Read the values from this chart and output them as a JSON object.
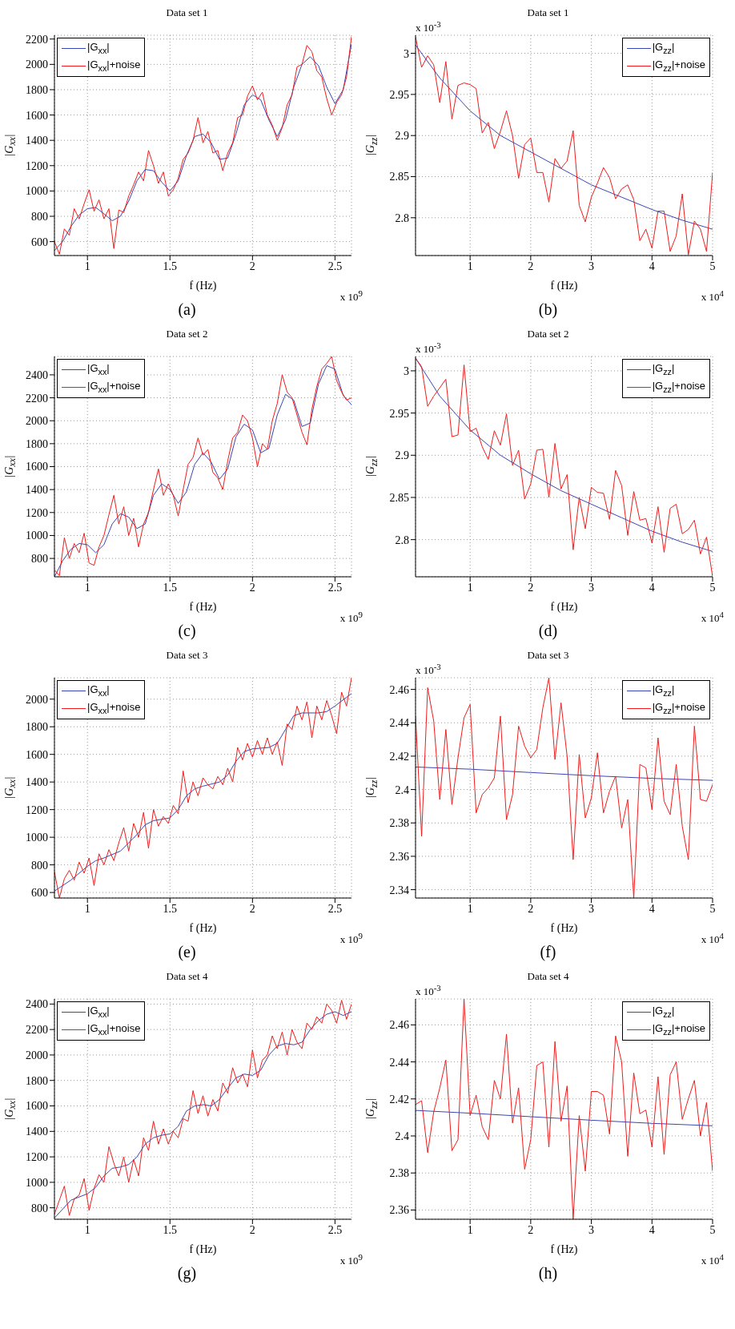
{
  "chart_data": [
    {
      "type": "line",
      "title": "Data set 1",
      "xlabel": "f (Hz)",
      "ylabel": "|G$_{xx}$|",
      "xlim": [
        0.8,
        2.6
      ],
      "xticks": [
        1,
        1.5,
        2,
        2.5
      ],
      "ylim": [
        490,
        2230
      ],
      "yticks": [
        600,
        800,
        1000,
        1200,
        1400,
        1600,
        1800,
        2000,
        2200
      ],
      "grid": true,
      "legend": "top left",
      "annotations": [
        "x 10$^{9}$",
        "(a)"
      ],
      "series": [
        {
          "name": "|G$_{xx}$|",
          "color": "#3a45b5",
          "x": [
            0.8,
            0.85,
            0.9,
            0.95,
            1.0,
            1.05,
            1.1,
            1.15,
            1.2,
            1.25,
            1.3,
            1.35,
            1.4,
            1.45,
            1.5,
            1.55,
            1.6,
            1.65,
            1.7,
            1.75,
            1.8,
            1.85,
            1.9,
            1.95,
            2.0,
            2.05,
            2.1,
            2.15,
            2.2,
            2.25,
            2.3,
            2.35,
            2.4,
            2.45,
            2.5,
            2.55,
            2.6
          ],
          "values": [
            530,
            600,
            720,
            810,
            860,
            870,
            820,
            765,
            800,
            920,
            1080,
            1170,
            1160,
            1070,
            1000,
            1080,
            1280,
            1430,
            1450,
            1380,
            1250,
            1260,
            1450,
            1680,
            1760,
            1720,
            1560,
            1430,
            1560,
            1820,
            2000,
            2060,
            1990,
            1820,
            1690,
            1800,
            2160
          ]
        },
        {
          "name": "|G$_{xx}$|+noise",
          "color": "#f01c1c",
          "x": [
            0.8,
            0.83,
            0.86,
            0.89,
            0.92,
            0.95,
            0.98,
            1.01,
            1.04,
            1.07,
            1.1,
            1.13,
            1.16,
            1.19,
            1.22,
            1.25,
            1.28,
            1.31,
            1.34,
            1.37,
            1.4,
            1.43,
            1.46,
            1.49,
            1.52,
            1.55,
            1.58,
            1.61,
            1.64,
            1.67,
            1.7,
            1.73,
            1.76,
            1.79,
            1.82,
            1.85,
            1.88,
            1.91,
            1.94,
            1.97,
            2.0,
            2.03,
            2.06,
            2.09,
            2.12,
            2.15,
            2.18,
            2.21,
            2.24,
            2.27,
            2.3,
            2.33,
            2.36,
            2.39,
            2.42,
            2.45,
            2.48,
            2.51,
            2.54,
            2.57,
            2.6
          ],
          "values": [
            600,
            500,
            700,
            650,
            860,
            780,
            900,
            1010,
            840,
            930,
            780,
            860,
            545,
            850,
            830,
            960,
            1050,
            1150,
            1080,
            1320,
            1200,
            1060,
            1150,
            960,
            1010,
            1100,
            1250,
            1300,
            1400,
            1580,
            1380,
            1470,
            1300,
            1320,
            1160,
            1300,
            1380,
            1580,
            1600,
            1750,
            1830,
            1720,
            1780,
            1600,
            1520,
            1400,
            1500,
            1680,
            1760,
            1980,
            2000,
            2150,
            2100,
            1950,
            1900,
            1730,
            1600,
            1700,
            1760,
            1900,
            2220
          ]
        }
      ]
    },
    {
      "type": "line",
      "title": "Data set 1",
      "xlabel": "f (Hz)",
      "ylabel": "|G$_{zz}$|",
      "xlim": [
        0.1,
        5
      ],
      "xticks": [
        1,
        2,
        3,
        4,
        5
      ],
      "ylim": [
        2.754,
        3.022
      ],
      "yticks": [
        2.8,
        2.85,
        2.9,
        2.95,
        3
      ],
      "grid": true,
      "legend": "top right",
      "annotations": [
        "x 10$^{-3}$",
        "x 10$^{4}$",
        "(b)"
      ],
      "series": [
        {
          "name": "|G$_{zz}$|",
          "color": "#3a45b5",
          "x": [
            0.1,
            0.5,
            1,
            1.5,
            2,
            2.5,
            3,
            3.5,
            4,
            4.5,
            5
          ],
          "values": [
            3.01,
            2.97,
            2.93,
            2.9,
            2.88,
            2.86,
            2.84,
            2.825,
            2.81,
            2.797,
            2.786
          ]
        },
        {
          "name": "|G$_{zz}$|+noise",
          "color": "#f01c1c",
          "x": [
            0.1,
            0.2,
            0.3,
            0.4,
            0.5,
            0.6,
            0.7,
            0.8,
            0.9,
            1.0,
            1.1,
            1.2,
            1.3,
            1.4,
            1.5,
            1.6,
            1.7,
            1.8,
            1.9,
            2.0,
            2.1,
            2.2,
            2.3,
            2.4,
            2.5,
            2.6,
            2.7,
            2.8,
            2.9,
            3.0,
            3.1,
            3.2,
            3.3,
            3.4,
            3.5,
            3.6,
            3.7,
            3.8,
            3.9,
            4.0,
            4.1,
            4.2,
            4.3,
            4.4,
            4.5,
            4.6,
            4.7,
            4.8,
            4.9,
            5.0
          ],
          "values": [
            3.02,
            2.983,
            2.997,
            2.986,
            2.94,
            2.99,
            2.92,
            2.961,
            2.964,
            2.962,
            2.957,
            2.903,
            2.916,
            2.884,
            2.905,
            2.93,
            2.9,
            2.848,
            2.889,
            2.897,
            2.855,
            2.855,
            2.819,
            2.872,
            2.86,
            2.869,
            2.906,
            2.815,
            2.795,
            2.825,
            2.842,
            2.861,
            2.849,
            2.823,
            2.835,
            2.84,
            2.822,
            2.772,
            2.786,
            2.763,
            2.808,
            2.808,
            2.759,
            2.778,
            2.829,
            2.755,
            2.796,
            2.786,
            2.759,
            2.855
          ]
        }
      ]
    },
    {
      "type": "line",
      "title": "Data set 2",
      "xlabel": "f (Hz)",
      "ylabel": "|G$_{xx}$|",
      "xlim": [
        0.8,
        2.6
      ],
      "xticks": [
        1,
        1.5,
        2,
        2.5
      ],
      "ylim": [
        640,
        2560
      ],
      "yticks": [
        800,
        1000,
        1200,
        1400,
        1600,
        1800,
        2000,
        2200,
        2400
      ],
      "grid": true,
      "legend": "top left",
      "annotations": [
        "x 10$^{9}$",
        "(c)"
      ],
      "series": [
        {
          "name": "|G$_{xx}$|",
          "color": "#3a45b5",
          "x": [
            0.8,
            0.85,
            0.9,
            0.95,
            1.0,
            1.05,
            1.1,
            1.15,
            1.2,
            1.25,
            1.3,
            1.35,
            1.4,
            1.45,
            1.5,
            1.55,
            1.6,
            1.65,
            1.7,
            1.75,
            1.8,
            1.85,
            1.9,
            1.95,
            2.0,
            2.05,
            2.1,
            2.15,
            2.2,
            2.25,
            2.3,
            2.35,
            2.4,
            2.45,
            2.5,
            2.55,
            2.6
          ],
          "values": [
            640,
            780,
            880,
            930,
            920,
            850,
            920,
            1100,
            1190,
            1160,
            1060,
            1100,
            1350,
            1450,
            1400,
            1280,
            1380,
            1620,
            1720,
            1640,
            1490,
            1580,
            1860,
            1970,
            1920,
            1720,
            1760,
            2050,
            2230,
            2180,
            1950,
            1980,
            2320,
            2480,
            2450,
            2220,
            2140
          ]
        },
        {
          "name": "|G$_{xx}$|+noise",
          "color": "#f01c1c",
          "x": [
            0.8,
            0.83,
            0.86,
            0.89,
            0.92,
            0.95,
            0.98,
            1.01,
            1.04,
            1.07,
            1.1,
            1.13,
            1.16,
            1.19,
            1.22,
            1.25,
            1.28,
            1.31,
            1.34,
            1.37,
            1.4,
            1.43,
            1.46,
            1.49,
            1.52,
            1.55,
            1.58,
            1.61,
            1.64,
            1.67,
            1.7,
            1.73,
            1.76,
            1.79,
            1.82,
            1.85,
            1.88,
            1.91,
            1.94,
            1.97,
            2.0,
            2.03,
            2.06,
            2.09,
            2.12,
            2.15,
            2.18,
            2.21,
            2.24,
            2.27,
            2.3,
            2.33,
            2.36,
            2.39,
            2.42,
            2.45,
            2.48,
            2.51,
            2.54,
            2.57,
            2.6
          ],
          "values": [
            700,
            650,
            980,
            800,
            930,
            850,
            1020,
            760,
            740,
            900,
            1000,
            1180,
            1350,
            1100,
            1250,
            1000,
            1150,
            900,
            1100,
            1200,
            1400,
            1580,
            1350,
            1450,
            1350,
            1170,
            1400,
            1620,
            1680,
            1850,
            1700,
            1750,
            1550,
            1500,
            1400,
            1650,
            1850,
            1900,
            2050,
            2000,
            1850,
            1600,
            1800,
            1750,
            2000,
            2150,
            2400,
            2250,
            2200,
            2050,
            1900,
            1790,
            2100,
            2300,
            2450,
            2500,
            2560,
            2350,
            2250,
            2180,
            2200
          ]
        }
      ]
    },
    {
      "type": "line",
      "title": "Data set 2",
      "xlabel": "f (Hz)",
      "ylabel": "|G$_{zz}$|",
      "xlim": [
        0.1,
        5
      ],
      "xticks": [
        1,
        2,
        3,
        4,
        5
      ],
      "ylim": [
        2.756,
        3.017
      ],
      "yticks": [
        2.8,
        2.85,
        2.9,
        2.95,
        3
      ],
      "grid": true,
      "legend": "top right",
      "annotations": [
        "x 10$^{-3}$",
        "x 10$^{4}$",
        "(d)"
      ],
      "series": [
        {
          "name": "|G$_{zz}$|",
          "color": "#3a45b5",
          "x": [
            0.1,
            0.5,
            1,
            1.5,
            2,
            2.5,
            3,
            3.5,
            4,
            4.5,
            5
          ],
          "values": [
            3.015,
            2.97,
            2.93,
            2.9,
            2.878,
            2.858,
            2.842,
            2.826,
            2.81,
            2.797,
            2.786
          ]
        },
        {
          "name": "|G$_{zz}$|+noise",
          "color": "#f01c1c",
          "x": [
            0.1,
            0.2,
            0.3,
            0.4,
            0.5,
            0.6,
            0.7,
            0.8,
            0.9,
            1.0,
            1.1,
            1.2,
            1.3,
            1.4,
            1.5,
            1.6,
            1.7,
            1.8,
            1.9,
            2.0,
            2.1,
            2.2,
            2.3,
            2.4,
            2.5,
            2.6,
            2.7,
            2.8,
            2.9,
            3.0,
            3.1,
            3.2,
            3.3,
            3.4,
            3.5,
            3.6,
            3.7,
            3.8,
            3.9,
            4.0,
            4.1,
            4.2,
            4.3,
            4.4,
            4.5,
            4.6,
            4.7,
            4.8,
            4.9,
            5.0
          ],
          "values": [
            3.015,
            3.005,
            2.958,
            2.97,
            2.98,
            2.99,
            2.922,
            2.924,
            3.007,
            2.928,
            2.932,
            2.91,
            2.895,
            2.929,
            2.912,
            2.949,
            2.888,
            2.906,
            2.848,
            2.866,
            2.906,
            2.907,
            2.85,
            2.914,
            2.86,
            2.877,
            2.788,
            2.85,
            2.813,
            2.862,
            2.856,
            2.855,
            2.824,
            2.882,
            2.864,
            2.805,
            2.857,
            2.823,
            2.825,
            2.796,
            2.839,
            2.785,
            2.837,
            2.842,
            2.807,
            2.812,
            2.823,
            2.783,
            2.803,
            2.756
          ]
        }
      ]
    },
    {
      "type": "line",
      "title": "Data set 3",
      "xlabel": "f (Hz)",
      "ylabel": "|G$_{xx}$|",
      "xlim": [
        0.8,
        2.6
      ],
      "xticks": [
        1,
        1.5,
        2,
        2.5
      ],
      "ylim": [
        560,
        2155
      ],
      "yticks": [
        600,
        800,
        1000,
        1200,
        1400,
        1600,
        1800,
        2000
      ],
      "grid": true,
      "legend": "top left",
      "annotations": [
        "x 10$^{9}$",
        "(e)"
      ],
      "series": [
        {
          "name": "|G$_{xx}$|",
          "color": "#3a45b5",
          "x": [
            0.8,
            0.9,
            1.0,
            1.05,
            1.1,
            1.2,
            1.3,
            1.35,
            1.4,
            1.5,
            1.55,
            1.6,
            1.65,
            1.7,
            1.8,
            1.85,
            1.9,
            1.95,
            2.0,
            2.1,
            2.15,
            2.2,
            2.25,
            2.3,
            2.4,
            2.45,
            2.5,
            2.6
          ],
          "values": [
            610,
            690,
            790,
            830,
            850,
            900,
            1020,
            1090,
            1120,
            1140,
            1200,
            1300,
            1350,
            1370,
            1400,
            1450,
            1550,
            1620,
            1640,
            1650,
            1680,
            1780,
            1880,
            1900,
            1900,
            1910,
            1950,
            2040
          ]
        },
        {
          "name": "|G$_{xx}$|+noise",
          "color": "#f01c1c",
          "x": [
            0.8,
            0.83,
            0.86,
            0.89,
            0.92,
            0.95,
            0.98,
            1.01,
            1.04,
            1.07,
            1.1,
            1.13,
            1.16,
            1.19,
            1.22,
            1.25,
            1.28,
            1.31,
            1.34,
            1.37,
            1.4,
            1.43,
            1.46,
            1.49,
            1.52,
            1.55,
            1.58,
            1.61,
            1.64,
            1.67,
            1.7,
            1.73,
            1.76,
            1.79,
            1.82,
            1.85,
            1.88,
            1.91,
            1.94,
            1.97,
            2.0,
            2.03,
            2.06,
            2.09,
            2.12,
            2.15,
            2.18,
            2.21,
            2.24,
            2.27,
            2.3,
            2.33,
            2.36,
            2.39,
            2.42,
            2.45,
            2.48,
            2.51,
            2.54,
            2.57,
            2.6
          ],
          "values": [
            750,
            560,
            700,
            760,
            690,
            820,
            740,
            850,
            650,
            880,
            800,
            910,
            830,
            960,
            1070,
            900,
            1100,
            1000,
            1180,
            920,
            1200,
            1080,
            1150,
            1100,
            1230,
            1170,
            1480,
            1250,
            1400,
            1300,
            1430,
            1380,
            1350,
            1440,
            1380,
            1500,
            1400,
            1650,
            1560,
            1680,
            1580,
            1700,
            1600,
            1720,
            1600,
            1690,
            1520,
            1820,
            1780,
            1950,
            1850,
            1980,
            1720,
            1950,
            1850,
            1990,
            1880,
            1750,
            2050,
            1950,
            2155
          ]
        }
      ]
    },
    {
      "type": "line",
      "title": "Data set 3",
      "xlabel": "f (Hz)",
      "ylabel": "|G$_{zz}$|",
      "xlim": [
        0.1,
        5
      ],
      "xticks": [
        1,
        2,
        3,
        4,
        5
      ],
      "ylim": [
        2.335,
        2.467
      ],
      "yticks": [
        2.34,
        2.36,
        2.38,
        2.4,
        2.42,
        2.44,
        2.46
      ],
      "grid": true,
      "legend": "top right",
      "annotations": [
        "x 10$^{-3}$",
        "x 10$^{4}$",
        "(f)"
      ],
      "series": [
        {
          "name": "|G$_{zz}$|",
          "color": "#3a45b5",
          "x": [
            0.1,
            1,
            2,
            3,
            4,
            5
          ],
          "values": [
            2.4135,
            2.4122,
            2.4102,
            2.4083,
            2.4067,
            2.4055
          ]
        },
        {
          "name": "|G$_{zz}$|+noise",
          "color": "#f01c1c",
          "x": [
            0.1,
            0.2,
            0.3,
            0.4,
            0.5,
            0.6,
            0.7,
            0.8,
            0.9,
            1.0,
            1.1,
            1.2,
            1.3,
            1.4,
            1.5,
            1.6,
            1.7,
            1.8,
            1.9,
            2.0,
            2.1,
            2.2,
            2.3,
            2.4,
            2.5,
            2.6,
            2.7,
            2.8,
            2.9,
            3.0,
            3.1,
            3.2,
            3.3,
            3.4,
            3.5,
            3.6,
            3.7,
            3.8,
            3.9,
            4.0,
            4.1,
            4.2,
            4.3,
            4.4,
            4.5,
            4.6,
            4.7,
            4.8,
            4.9,
            5.0
          ],
          "values": [
            2.444,
            2.372,
            2.461,
            2.441,
            2.394,
            2.436,
            2.391,
            2.419,
            2.443,
            2.451,
            2.386,
            2.397,
            2.401,
            2.407,
            2.444,
            2.382,
            2.397,
            2.438,
            2.426,
            2.419,
            2.424,
            2.449,
            2.467,
            2.418,
            2.452,
            2.42,
            2.358,
            2.421,
            2.383,
            2.395,
            2.422,
            2.386,
            2.399,
            2.408,
            2.377,
            2.394,
            2.335,
            2.415,
            2.413,
            2.388,
            2.431,
            2.393,
            2.385,
            2.415,
            2.378,
            2.358,
            2.438,
            2.394,
            2.393,
            2.403
          ]
        }
      ]
    },
    {
      "type": "line",
      "title": "Data set 4",
      "xlabel": "f (Hz)",
      "ylabel": "|G$_{xx}$|",
      "xlim": [
        0.8,
        2.6
      ],
      "xticks": [
        1,
        1.5,
        2,
        2.5
      ],
      "ylim": [
        710,
        2440
      ],
      "yticks": [
        800,
        1000,
        1200,
        1400,
        1600,
        1800,
        2000,
        2200,
        2400
      ],
      "grid": true,
      "legend": "top left",
      "annotations": [
        "x 10$^{9}$",
        "(g)"
      ],
      "series": [
        {
          "name": "|G$_{xx}$|",
          "color": "#3a45b5",
          "x": [
            0.8,
            0.9,
            1.0,
            1.05,
            1.1,
            1.15,
            1.2,
            1.25,
            1.3,
            1.35,
            1.4,
            1.45,
            1.5,
            1.55,
            1.6,
            1.65,
            1.7,
            1.75,
            1.8,
            1.85,
            1.9,
            1.95,
            2.0,
            2.05,
            2.1,
            2.15,
            2.2,
            2.25,
            2.3,
            2.35,
            2.4,
            2.45,
            2.5,
            2.55,
            2.6
          ],
          "values": [
            720,
            860,
            910,
            960,
            1050,
            1110,
            1120,
            1140,
            1200,
            1300,
            1350,
            1370,
            1380,
            1440,
            1560,
            1600,
            1610,
            1600,
            1650,
            1740,
            1820,
            1850,
            1840,
            1880,
            2000,
            2070,
            2090,
            2080,
            2100,
            2200,
            2270,
            2320,
            2340,
            2310,
            2340
          ]
        },
        {
          "name": "|G$_{xx}$|+noise",
          "color": "#f01c1c",
          "x": [
            0.8,
            0.83,
            0.86,
            0.89,
            0.92,
            0.95,
            0.98,
            1.01,
            1.04,
            1.07,
            1.1,
            1.13,
            1.16,
            1.19,
            1.22,
            1.25,
            1.28,
            1.31,
            1.34,
            1.37,
            1.4,
            1.43,
            1.46,
            1.49,
            1.52,
            1.55,
            1.58,
            1.61,
            1.64,
            1.67,
            1.7,
            1.73,
            1.76,
            1.79,
            1.82,
            1.85,
            1.88,
            1.91,
            1.94,
            1.97,
            2.0,
            2.03,
            2.06,
            2.09,
            2.12,
            2.15,
            2.18,
            2.21,
            2.24,
            2.27,
            2.3,
            2.33,
            2.36,
            2.39,
            2.42,
            2.45,
            2.48,
            2.51,
            2.54,
            2.57,
            2.6
          ],
          "values": [
            750,
            860,
            970,
            740,
            870,
            900,
            1030,
            780,
            950,
            1060,
            1000,
            1280,
            1150,
            1050,
            1200,
            1000,
            1180,
            1050,
            1350,
            1250,
            1480,
            1300,
            1420,
            1300,
            1400,
            1350,
            1500,
            1480,
            1720,
            1540,
            1680,
            1520,
            1650,
            1560,
            1780,
            1700,
            1900,
            1780,
            1850,
            1750,
            2040,
            1820,
            1960,
            2000,
            2150,
            2050,
            2180,
            2000,
            2200,
            2100,
            2050,
            2250,
            2200,
            2300,
            2250,
            2400,
            2350,
            2250,
            2430,
            2280,
            2400
          ]
        }
      ]
    },
    {
      "type": "line",
      "title": "Data set 4",
      "xlabel": "f (Hz)",
      "ylabel": "|G$_{zz}$|",
      "xlim": [
        0.1,
        5
      ],
      "xticks": [
        1,
        2,
        3,
        4,
        5
      ],
      "ylim": [
        2.355,
        2.474
      ],
      "yticks": [
        2.36,
        2.38,
        2.4,
        2.42,
        2.44,
        2.46
      ],
      "grid": true,
      "legend": "top right",
      "annotations": [
        "x 10$^{-3}$",
        "x 10$^{4}$",
        "(h)"
      ],
      "series": [
        {
          "name": "|G$_{zz}$|",
          "color": "#3a45b5",
          "x": [
            0.1,
            1,
            2,
            3,
            4,
            5
          ],
          "values": [
            2.4138,
            2.4123,
            2.4104,
            2.4085,
            2.4068,
            2.4055
          ]
        },
        {
          "name": "|G$_{zz}$|+noise",
          "color": "#f01c1c",
          "x": [
            0.1,
            0.2,
            0.3,
            0.4,
            0.5,
            0.6,
            0.7,
            0.8,
            0.9,
            1.0,
            1.1,
            1.2,
            1.3,
            1.4,
            1.5,
            1.6,
            1.7,
            1.8,
            1.9,
            2.0,
            2.1,
            2.2,
            2.3,
            2.4,
            2.5,
            2.6,
            2.7,
            2.8,
            2.9,
            3.0,
            3.1,
            3.2,
            3.3,
            3.4,
            3.5,
            3.6,
            3.7,
            3.8,
            3.9,
            4.0,
            4.1,
            4.2,
            4.3,
            4.4,
            4.5,
            4.6,
            4.7,
            4.8,
            4.9,
            5.0
          ],
          "values": [
            2.417,
            2.419,
            2.391,
            2.413,
            2.426,
            2.441,
            2.392,
            2.398,
            2.474,
            2.411,
            2.422,
            2.405,
            2.398,
            2.43,
            2.42,
            2.455,
            2.407,
            2.426,
            2.382,
            2.398,
            2.438,
            2.44,
            2.394,
            2.451,
            2.408,
            2.427,
            2.355,
            2.411,
            2.381,
            2.424,
            2.424,
            2.422,
            2.401,
            2.454,
            2.44,
            2.389,
            2.434,
            2.412,
            2.414,
            2.394,
            2.432,
            2.39,
            2.433,
            2.44,
            2.409,
            2.42,
            2.43,
            2.4,
            2.418,
            2.381
          ]
        }
      ]
    }
  ]
}
